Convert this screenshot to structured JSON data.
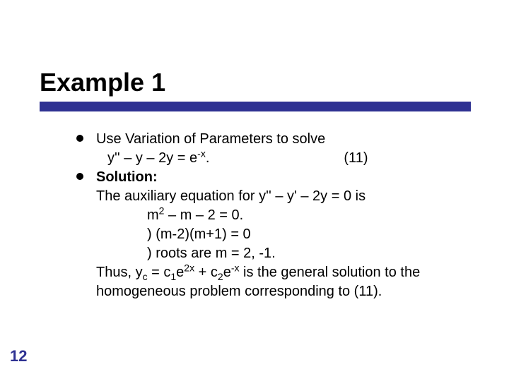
{
  "colors": {
    "accent": "#2e3192",
    "text": "#000000",
    "background": "#ffffff"
  },
  "typography": {
    "title_fontsize": 36,
    "body_fontsize": 20,
    "page_number_fontsize": 22,
    "font_family": "Arial"
  },
  "title": "Example 1",
  "page_number": "12",
  "bullets": [
    {
      "line1": "Use Variation of Parameters to solve",
      "equation": "y'' – y – 2y = e",
      "equation_sup": "-x",
      "equation_after": ".",
      "eq_number": "(11)"
    },
    {
      "solution_label": "Solution:",
      "line1": "The auxiliary equation for y'' – y' – 2y = 0 is",
      "line2_pre": "m",
      "line2_sup": "2",
      "line2_post": " – m – 2 = 0.",
      "line3": ") (m-2)(m+1) = 0",
      "line4": ") roots are m = 2, -1.",
      "line5_a": "Thus, y",
      "line5_sub1": "c",
      "line5_b": " = c",
      "line5_sub2": "1",
      "line5_c": "e",
      "line5_sup1": "2x",
      "line5_d": " + c",
      "line5_sub3": "2",
      "line5_e": "e",
      "line5_sup2": "-x",
      "line5_f": " is the general solution to the",
      "line6": "homogeneous problem corresponding to (11)."
    }
  ]
}
